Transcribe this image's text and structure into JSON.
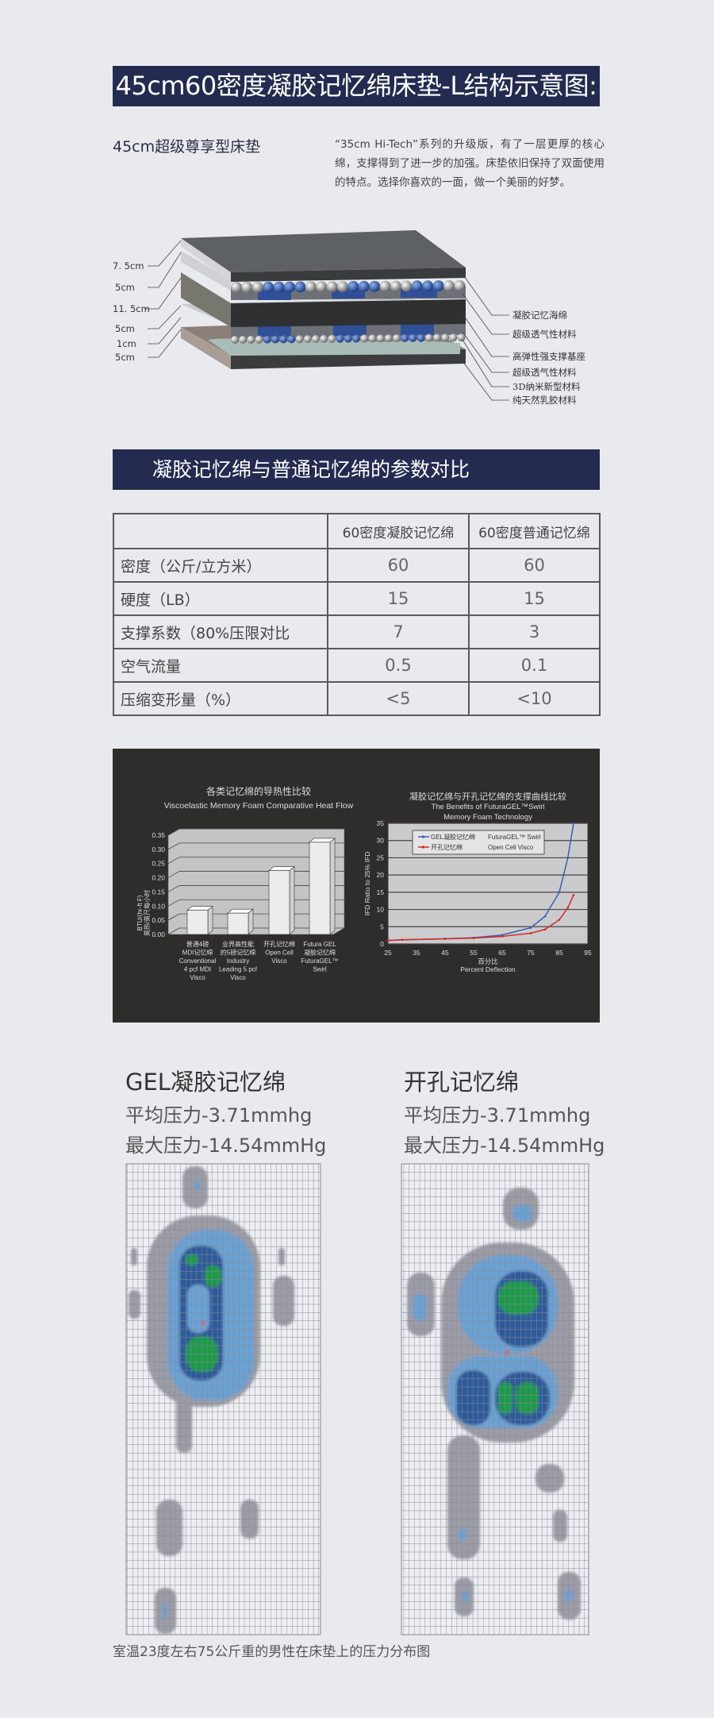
{
  "banner1": {
    "title": "45cm60密度凝胶记忆绵床垫-L结构示意图:"
  },
  "intro": {
    "subtitle": "45cm超级尊享型床垫",
    "description": "“35cm Hi-Tech”系列的升级版，有了一层更厚的核心绵，支撑得到了进一步的加强。床垫依旧保持了双面使用的特点。选择你喜欢的一面，做一个美丽的好梦。"
  },
  "diagram": {
    "thickness_labels": [
      "7. 5cm",
      "5cm",
      "11. 5cm",
      "5cm",
      "1cm",
      "5cm"
    ],
    "layer_labels": [
      "凝胶记忆海绵",
      "超级透气性材料",
      "高弹性强支撑基座",
      "超级透气性材料",
      "3D纳米新型材料",
      "纯天然乳胶材料"
    ],
    "colors": {
      "slab": "#5c5f63",
      "gel_blue": "#2f5aa8",
      "latex": "#8a8078"
    }
  },
  "banner2": {
    "title": "凝胶记忆绵与普通记忆绵的参数对比"
  },
  "table": {
    "headers": [
      "",
      "60密度凝胶记忆绵",
      "60密度普通记忆绵"
    ],
    "rows": [
      [
        "密度（公斤/立方米）",
        "60",
        "60"
      ],
      [
        "硬度（LB）",
        "15",
        "15"
      ],
      [
        "支撑系数（80%压限对比",
        "7",
        "3"
      ],
      [
        "空气流量",
        "0.5",
        "0.1"
      ],
      [
        "压缩变形量（%）",
        "<5",
        "<10"
      ]
    ]
  },
  "chart_data": [
    {
      "type": "bar",
      "title": "各类记忆绵的导热性比较",
      "subtitle": "Viscoelastic Memory Foam Comparative Heat Flow",
      "ylabel": [
        "BTU/(hr-ft F)",
        "英热/英尺每小时"
      ],
      "categories": [
        [
          "普通4磅",
          "MDI记忆绵",
          "Conventional",
          "4 pcf MDI",
          "Visco"
        ],
        [
          "业界高性能",
          "的5磅记忆绵",
          "Industry",
          "Leading 5 pcf",
          "Visco"
        ],
        [
          "开孔记忆绵",
          "Open Cell",
          "Visco"
        ],
        [
          "Futura GEL",
          "凝胶记忆绵",
          "FuturaGEL™",
          "Swirl"
        ]
      ],
      "values": [
        0.085,
        0.075,
        0.225,
        0.325
      ],
      "yticks": [
        "0.00",
        "0.05",
        "0.10",
        "0.15",
        "0.20",
        "0.25",
        "0.30",
        "0.35"
      ],
      "ylim": [
        0,
        0.35
      ],
      "grid": true
    },
    {
      "type": "line",
      "title": "凝胶记忆绵与开孔记忆绵的支撑曲线比较",
      "subtitle": [
        "The Benefits of FuturaGEL™Swirl",
        "Memory Foam Technology"
      ],
      "xlabel": [
        "百分比",
        "Percent Deflection"
      ],
      "ylabel": "IFD Ratio to 25% IFD",
      "xlim": [
        25,
        95
      ],
      "ylim": [
        0,
        35
      ],
      "xticks": [
        "25",
        "35",
        "45",
        "55",
        "65",
        "75",
        "85",
        "95"
      ],
      "yticks": [
        "0",
        "5",
        "10",
        "15",
        "20",
        "25",
        "30",
        "35"
      ],
      "legend_position": "top-left",
      "grid": true,
      "series": [
        {
          "name": "GEL凝胶记忆绵",
          "name_en": "FuturaGEL™ Swirl",
          "color": "#3a5fb0",
          "x": [
            25,
            30,
            45,
            55,
            65,
            75,
            80,
            85,
            88,
            90
          ],
          "y": [
            1.0,
            1.2,
            1.5,
            1.8,
            2.6,
            4.7,
            8.0,
            15.0,
            25.0,
            35.0
          ]
        },
        {
          "name": "开孔记忆绵",
          "name_en": "Open Cell Visco",
          "color": "#d22a22",
          "x": [
            25,
            30,
            45,
            55,
            65,
            75,
            80,
            85,
            88,
            90
          ],
          "y": [
            1.0,
            1.2,
            1.5,
            1.7,
            2.2,
            3.1,
            4.2,
            7.0,
            10.5,
            14.2
          ]
        }
      ]
    }
  ],
  "pressure": {
    "left": {
      "title": "GEL凝胶记忆绵",
      "avg": "平均压力-3.71mmhg",
      "max": "最大压力-14.54mmHg"
    },
    "right": {
      "title": "开孔记忆绵",
      "avg": "平均压力-3.71mmhg",
      "max": "最大压力-14.54mmHg"
    },
    "colors": {
      "low": "#9c9ca6",
      "mid": "#6aa2d4",
      "high": "#2f5a9a",
      "peak": "#1c9a4a",
      "max": "#e03a1a"
    },
    "caption": "室温23度左右75公斤重的男性在床垫上的压力分布图"
  }
}
